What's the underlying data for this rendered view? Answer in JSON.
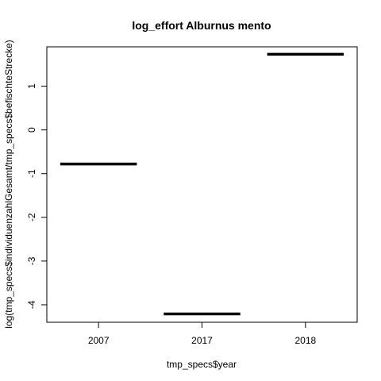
{
  "chart_data": {
    "type": "boxplot",
    "title": "log_effort Alburnus mento",
    "xlabel": "tmp_specs$year",
    "ylabel": "log(tmp_specs$individuenzahlGesamt/tmp_specs$befischteStrecke)",
    "categories": [
      "2007",
      "2017",
      "2018"
    ],
    "values": [
      -0.78,
      -4.21,
      1.73
    ],
    "ylim": [
      -4.4,
      1.9
    ],
    "yticks": [
      -4,
      -3,
      -2,
      -1,
      0,
      1
    ],
    "ytick_labels": [
      "-4",
      "-3",
      "-2",
      "-1",
      "0",
      "1"
    ],
    "grid": false,
    "colors": {
      "line": "#000000",
      "frame": "#000000",
      "background": "#ffffff"
    }
  }
}
